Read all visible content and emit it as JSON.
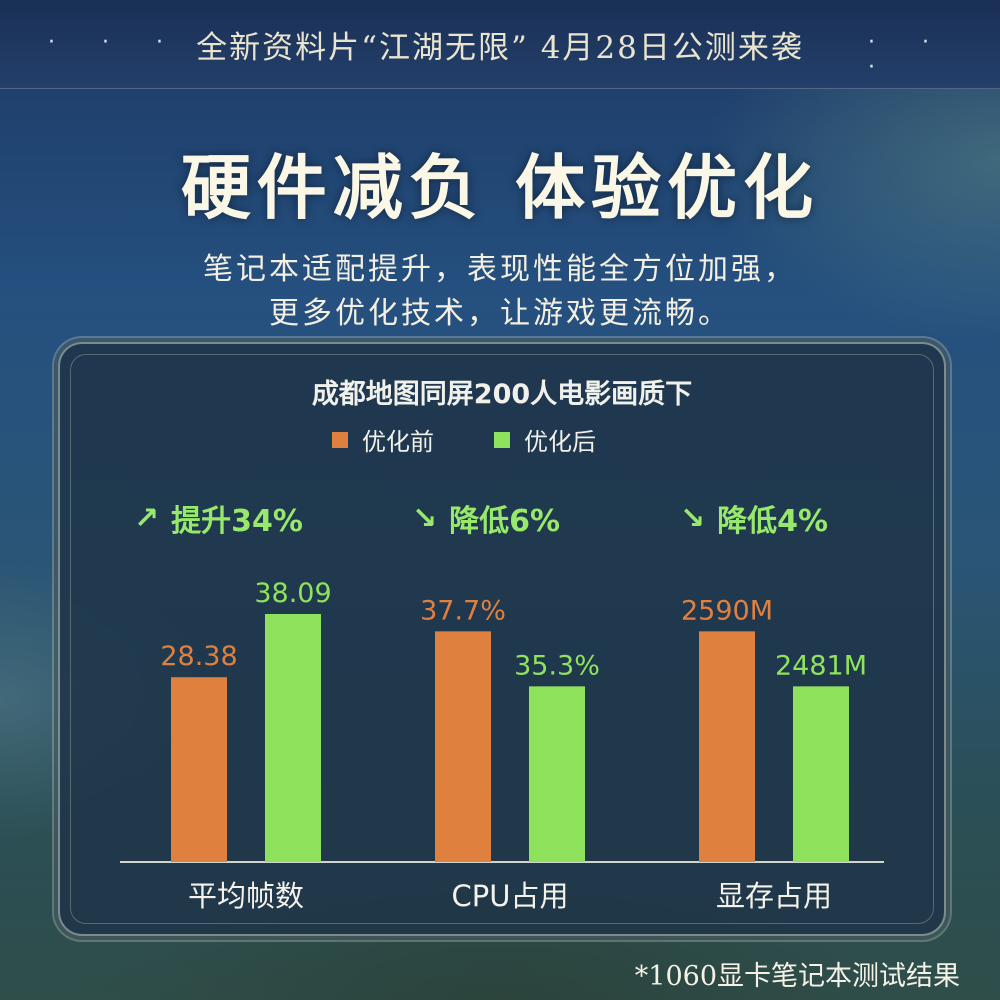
{
  "banner": {
    "text": "全新资料片“江湖无限” 4月28日公测来袭",
    "dots_left": "· · ·",
    "dots_right": "· · ·"
  },
  "headline": "硬件减负  体验优化",
  "subline": {
    "line1": "笔记本适配提升，表现性能全方位加强，",
    "line2": "更多优化技术，让游戏更流畅。"
  },
  "footnote": "*1060显卡笔记本测试结果",
  "colors": {
    "before": "#e0803f",
    "after": "#8fe35c",
    "trend": "#97e86b"
  },
  "chart_data": {
    "type": "bar",
    "title": "成都地图同屏200人电影画质下",
    "categories": [
      "平均帧数",
      "CPU占用",
      "显存占用"
    ],
    "series": [
      {
        "name": "优化前",
        "values": [
          28.38,
          37.7,
          2590
        ],
        "labels": [
          "28.38",
          "37.7%",
          "2590M"
        ]
      },
      {
        "name": "优化后",
        "values": [
          38.09,
          35.3,
          2481
        ],
        "labels": [
          "38.09",
          "35.3%",
          "2481M"
        ]
      }
    ],
    "trends": [
      {
        "arrow": "↗",
        "text": "提升34%"
      },
      {
        "arrow": "↘",
        "text": "降低6%"
      },
      {
        "arrow": "↘",
        "text": "降低4%"
      }
    ],
    "legend_position": "top",
    "grid": false,
    "independent_scales": true
  }
}
